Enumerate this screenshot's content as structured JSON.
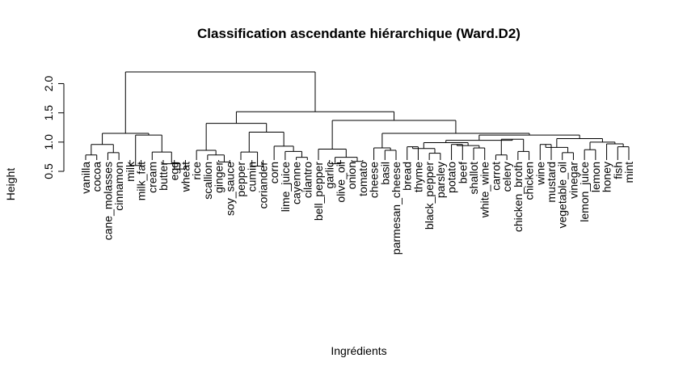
{
  "chart_data": {
    "type": "dendrogram",
    "title": "Classification ascendante hiérarchique (Ward.D2)",
    "xlabel": "Ingrédients",
    "ylabel": "Height",
    "ylim": [
      0.5,
      2.2
    ],
    "yticks": [
      0.5,
      1.0,
      1.5,
      2.0
    ],
    "ytick_labels": [
      "0.5",
      "1.0",
      "1.5",
      "2.0"
    ],
    "leaves": [
      "vanilla",
      "cocoa",
      "cane_molasses",
      "cinnamon",
      "milk",
      "milk_fat",
      "cream",
      "butter",
      "egg",
      "wheat",
      "rice",
      "scallion",
      "ginger",
      "soy_sauce",
      "pepper",
      "cumin",
      "coriander",
      "corn",
      "lime_juice",
      "cayenne",
      "cilantro",
      "bell_pepper",
      "garlic",
      "olive_oil",
      "onion",
      "tomato",
      "cheese",
      "basil",
      "parmesan_cheese",
      "bread",
      "thyme",
      "black_pepper",
      "parsley",
      "potato",
      "beef",
      "shallot",
      "white_wine",
      "carrot",
      "celery",
      "chicken_broth",
      "chicken",
      "wine",
      "mustard",
      "vegetable_oil",
      "vinegar",
      "lemon_juice",
      "lemon",
      "honey",
      "fish",
      "mint"
    ],
    "merges": [
      {
        "left": "L0",
        "right": "L1",
        "height": 0.78
      },
      {
        "left": "L2",
        "right": "L3",
        "height": 0.82
      },
      {
        "left": "M0",
        "right": "M1",
        "height": 0.96
      },
      {
        "left": "L8",
        "right": "L9",
        "height": 0.54
      },
      {
        "left": "L7",
        "right": "M3",
        "height": 0.63
      },
      {
        "left": "L6",
        "right": "M4",
        "height": 0.83
      },
      {
        "left": "L4",
        "right": "L5",
        "height": 0.6
      },
      {
        "left": "M6",
        "right": "M5",
        "height": 1.12
      },
      {
        "left": "M2",
        "right": "M7",
        "height": 1.15
      },
      {
        "left": "L12",
        "right": "L13",
        "height": 0.66
      },
      {
        "left": "L11",
        "right": "M9",
        "height": 0.78
      },
      {
        "left": "L10",
        "right": "M10",
        "height": 0.86
      },
      {
        "left": "L15",
        "right": "L16",
        "height": 0.59
      },
      {
        "left": "L14",
        "right": "M12",
        "height": 0.83
      },
      {
        "left": "L19",
        "right": "L20",
        "height": 0.74
      },
      {
        "left": "L18",
        "right": "M14",
        "height": 0.84
      },
      {
        "left": "L17",
        "right": "M15",
        "height": 0.93
      },
      {
        "left": "M13",
        "right": "M16",
        "height": 1.17
      },
      {
        "left": "M11",
        "right": "M17",
        "height": 1.32
      },
      {
        "left": "L22",
        "right": "L23",
        "height": 0.63
      },
      {
        "left": "L24",
        "right": "L25",
        "height": 0.67
      },
      {
        "left": "M19",
        "right": "M20",
        "height": 0.74
      },
      {
        "left": "L21",
        "right": "M21",
        "height": 0.88
      },
      {
        "left": "L27",
        "right": "L28",
        "height": 0.86
      },
      {
        "left": "L26",
        "right": "M23",
        "height": 0.9
      },
      {
        "left": "L29",
        "right": "L30",
        "height": 0.92
      },
      {
        "left": "L31",
        "right": "L32",
        "height": 0.81
      },
      {
        "left": "M25",
        "right": "M26",
        "height": 0.89
      },
      {
        "left": "L33",
        "right": "L34",
        "height": 0.96
      },
      {
        "left": "L35",
        "right": "L36",
        "height": 0.9
      },
      {
        "left": "M28",
        "right": "M29",
        "height": 0.94
      },
      {
        "left": "M27",
        "right": "M30",
        "height": 0.99
      },
      {
        "left": "L37",
        "right": "L38",
        "height": 0.78
      },
      {
        "left": "L39",
        "right": "L40",
        "height": 0.84
      },
      {
        "left": "M32",
        "right": "M33",
        "height": 1.05
      },
      {
        "left": "M31",
        "right": "M34",
        "height": 1.03
      },
      {
        "left": "L41",
        "right": "L42",
        "height": 0.96
      },
      {
        "left": "L43",
        "right": "L44",
        "height": 0.82
      },
      {
        "left": "M37",
        "right": "M36",
        "height": 0.91
      },
      {
        "left": "L45",
        "right": "L46",
        "height": 0.87
      },
      {
        "left": "L48",
        "right": "L49",
        "height": 0.92
      },
      {
        "left": "L47",
        "right": "M40",
        "height": 0.97
      },
      {
        "left": "M39",
        "right": "M41",
        "height": 1.0
      },
      {
        "left": "M38",
        "right": "M42",
        "height": 1.06
      },
      {
        "left": "M35",
        "right": "M43",
        "height": 1.12
      },
      {
        "left": "M24",
        "right": "M44",
        "height": 1.15
      },
      {
        "left": "M22",
        "right": "M45",
        "height": 1.37
      },
      {
        "left": "M18",
        "right": "M46",
        "height": 1.52
      },
      {
        "left": "M8",
        "right": "M47",
        "height": 2.2
      }
    ]
  }
}
